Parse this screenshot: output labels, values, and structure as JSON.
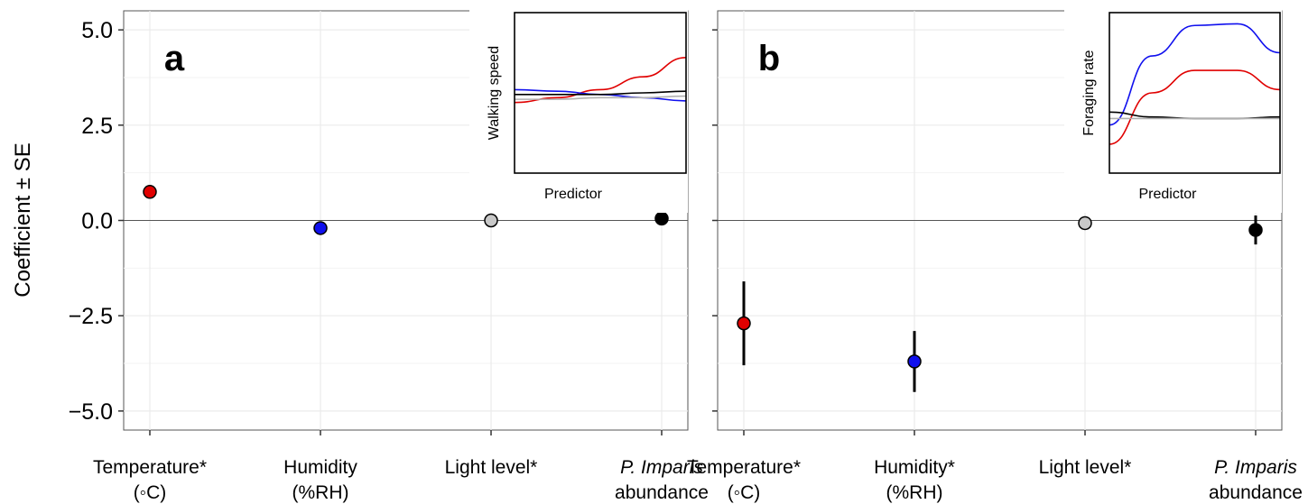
{
  "y_axis_title": "Coefficient ± SE",
  "colors": {
    "temperature": "#e00000",
    "humidity": "#1010ee",
    "light": "#c8c8c8",
    "abundance": "#000000",
    "panel_bg": "#ffffff",
    "grid": "#ebebeb",
    "zero_line": "#555555"
  },
  "chart_data": [
    {
      "type": "scatter",
      "panel_label": "a",
      "categories": [
        {
          "lines": [
            "Temperature*",
            "(◦C)"
          ],
          "italic_first": false
        },
        {
          "lines": [
            "Humidity",
            "(%RH)"
          ],
          "italic_first": false
        },
        {
          "lines": [
            "Light level*"
          ],
          "italic_first": false
        },
        {
          "lines": [
            "P. Imparis",
            "abundance"
          ],
          "italic_first": true
        }
      ],
      "values": [
        0.75,
        -0.2,
        0.0,
        0.05
      ],
      "se": [
        0.0,
        0.0,
        0.0,
        0.0
      ],
      "point_colors": [
        "#e00000",
        "#1010ee",
        "#c8c8c8",
        "#000000"
      ],
      "ylim": [
        -5.5,
        5.5
      ],
      "yticks": [
        "5.0",
        "2.5",
        "0.0",
        "−2.5",
        "−5.0"
      ],
      "ytick_values": [
        5.0,
        2.5,
        0.0,
        -2.5,
        -5.0
      ],
      "show_y_labels": true,
      "inset": {
        "type": "line",
        "ylabel": "Walking speed",
        "xlabel": "Predictor",
        "x": [
          0,
          0.25,
          0.5,
          0.75,
          1.0
        ],
        "series": [
          {
            "color": "#e00000",
            "values": [
              0.44,
              0.47,
              0.52,
              0.6,
              0.72
            ]
          },
          {
            "color": "#1010ee",
            "values": [
              0.52,
              0.51,
              0.49,
              0.47,
              0.45
            ]
          },
          {
            "color": "#000000",
            "values": [
              0.49,
              0.49,
              0.49,
              0.5,
              0.51
            ]
          },
          {
            "color": "#b0b0b0",
            "values": [
              0.46,
              0.46,
              0.47,
              0.47,
              0.48
            ]
          }
        ],
        "ylim": [
          0,
          1
        ]
      }
    },
    {
      "type": "scatter",
      "panel_label": "b",
      "categories": [
        {
          "lines": [
            "Temperature*",
            "(◦C)"
          ],
          "italic_first": false
        },
        {
          "lines": [
            "Humidity*",
            "(%RH)"
          ],
          "italic_first": false
        },
        {
          "lines": [
            "Light level*"
          ],
          "italic_first": false
        },
        {
          "lines": [
            "P. Imparis",
            "abundance"
          ],
          "italic_first": true
        }
      ],
      "values": [
        -2.7,
        -3.7,
        -0.07,
        -0.25
      ],
      "se": [
        1.1,
        0.8,
        0.0,
        0.38
      ],
      "point_colors": [
        "#e00000",
        "#1010ee",
        "#c8c8c8",
        "#000000"
      ],
      "ylim": [
        -5.5,
        5.5
      ],
      "yticks": [
        "5.0",
        "2.5",
        "0.0",
        "−2.5",
        "−5.0"
      ],
      "ytick_values": [
        5.0,
        2.5,
        0.0,
        -2.5,
        -5.0
      ],
      "show_y_labels": false,
      "inset": {
        "type": "line",
        "ylabel": "Foraging rate",
        "xlabel": "Predictor",
        "x": [
          0,
          0.25,
          0.5,
          0.75,
          1.0
        ],
        "series": [
          {
            "color": "#1010ee",
            "values": [
              0.3,
              0.73,
              0.92,
              0.93,
              0.75
            ]
          },
          {
            "color": "#e00000",
            "values": [
              0.18,
              0.5,
              0.64,
              0.64,
              0.52
            ]
          },
          {
            "color": "#000000",
            "values": [
              0.38,
              0.35,
              0.34,
              0.34,
              0.35
            ]
          },
          {
            "color": "#b0b0b0",
            "values": [
              0.34,
              0.34,
              0.34,
              0.34,
              0.34
            ]
          }
        ],
        "ylim": [
          0,
          1
        ]
      }
    }
  ]
}
